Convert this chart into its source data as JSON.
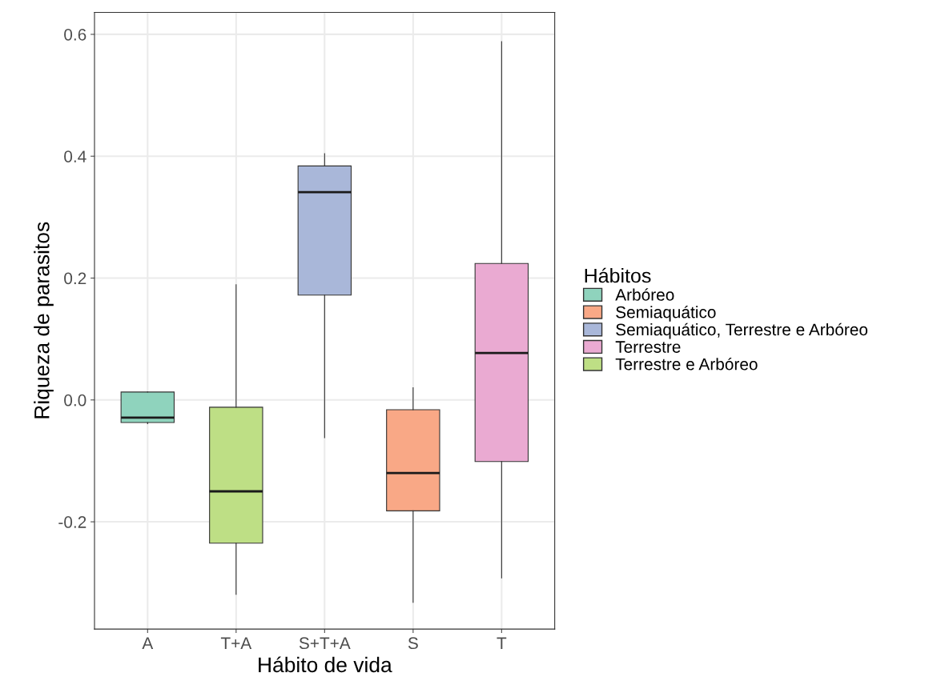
{
  "chart_data": {
    "type": "box",
    "xlabel": "Hábito de vida",
    "ylabel": "Riqueza de parasitos",
    "legend_title": "Hábitos",
    "categories": [
      "A",
      "T+A",
      "S+T+A",
      "S",
      "T"
    ],
    "series": [
      {
        "name": "Arbóreo",
        "color": "#8fd3bd",
        "boxes": [
          {
            "low": -0.039,
            "q1": -0.037,
            "median": -0.029,
            "q3": 0.013,
            "high": 0.013
          },
          null,
          null,
          null,
          null
        ]
      },
      {
        "name": "Semiaquático",
        "color": "#f9a886",
        "boxes": [
          null,
          null,
          null,
          {
            "low": -0.332,
            "q1": -0.182,
            "median": -0.12,
            "q3": -0.016,
            "high": 0.02
          },
          null
        ]
      },
      {
        "name": "Semiaquático, Terrestre e Arbóreo",
        "color": "#a9b7d9",
        "boxes": [
          null,
          null,
          {
            "low": -0.062,
            "q1": 0.172,
            "median": 0.341,
            "q3": 0.384,
            "high": 0.404
          },
          null,
          null
        ]
      },
      {
        "name": "Terrestre",
        "color": "#eaaad2",
        "boxes": [
          null,
          null,
          null,
          null,
          {
            "low": -0.292,
            "q1": -0.101,
            "median": 0.077,
            "q3": 0.224,
            "high": 0.588
          }
        ]
      },
      {
        "name": "Terrestre e Arbóreo",
        "color": "#bedf85",
        "boxes": [
          null,
          {
            "low": -0.319,
            "q1": -0.235,
            "median": -0.15,
            "q3": -0.012,
            "high": 0.189
          },
          null,
          null,
          null
        ]
      }
    ],
    "ylim": [
      -0.376,
      0.636
    ],
    "yticks": [
      {
        "value": -0.2,
        "label": "-0.2"
      },
      {
        "value": 0.0,
        "label": "0.0"
      },
      {
        "value": 0.2,
        "label": "0.2"
      },
      {
        "value": 0.4,
        "label": "0.4"
      },
      {
        "value": 0.6,
        "label": "0.6"
      }
    ],
    "grid": true,
    "legend": "right"
  }
}
